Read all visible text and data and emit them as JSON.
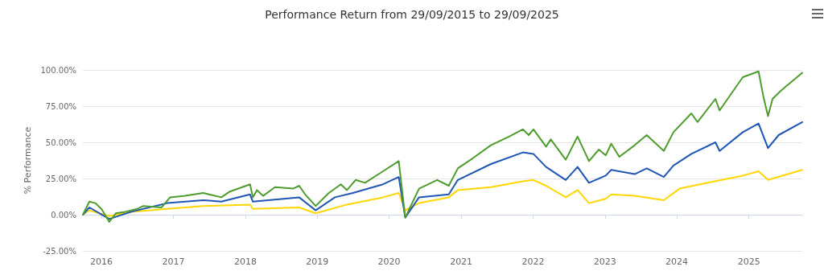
{
  "chart_data": {
    "type": "line",
    "title": "Performance Return from 29/09/2015 to 29/09/2025",
    "ylabel": "% Performance",
    "xlim": [
      "2015-09-29",
      "2025-09-29"
    ],
    "xticks": [
      "2016",
      "2017",
      "2018",
      "2019",
      "2020",
      "2021",
      "2022",
      "2023",
      "2024",
      "2025"
    ],
    "ylim": [
      -25,
      100
    ],
    "yticks": [
      {
        "value": -25,
        "label": "-25.00%"
      },
      {
        "value": 0,
        "label": "0.00%"
      },
      {
        "value": 25,
        "label": "25.00%"
      },
      {
        "value": 50,
        "label": "50.00%"
      },
      {
        "value": 75,
        "label": "75.00%"
      },
      {
        "value": 100,
        "label": "100.00%"
      }
    ],
    "grid": "y",
    "marker": "none",
    "line_style": "solid",
    "series": [
      {
        "color": "#ffd700",
        "x": [
          "2015-09-29",
          "2015-11-01",
          "2016-02-10",
          "2016-06-01",
          "2016-12-01",
          "2017-06-01",
          "2018-01-25",
          "2018-02-08",
          "2018-10-01",
          "2018-12-24",
          "2019-06-01",
          "2019-12-01",
          "2020-02-19",
          "2020-03-23",
          "2020-06-01",
          "2020-10-30",
          "2020-12-15",
          "2021-06-01",
          "2021-11-10",
          "2022-01-03",
          "2022-03-08",
          "2022-06-16",
          "2022-08-15",
          "2022-10-12",
          "2023-01-05",
          "2023-02-02",
          "2023-06-01",
          "2023-10-27",
          "2024-01-15",
          "2024-06-01",
          "2024-12-01",
          "2025-02-19",
          "2025-04-08",
          "2025-09-29"
        ],
        "values": [
          0,
          3,
          -1,
          2,
          4,
          6,
          7,
          4,
          5,
          1,
          7,
          12,
          15,
          3,
          8,
          12,
          17,
          19,
          23,
          24,
          20,
          12,
          17,
          8,
          11,
          14,
          13,
          10,
          18,
          22,
          27,
          30,
          24,
          31
        ]
      },
      {
        "color": "#1f55b5",
        "x": [
          "2015-09-29",
          "2015-11-01",
          "2016-02-10",
          "2016-06-01",
          "2016-12-01",
          "2017-06-01",
          "2017-09-01",
          "2018-01-25",
          "2018-02-08",
          "2018-10-01",
          "2018-12-24",
          "2019-04-01",
          "2019-07-01",
          "2019-12-01",
          "2020-02-19",
          "2020-03-23",
          "2020-06-01",
          "2020-10-30",
          "2020-12-15",
          "2021-06-01",
          "2021-11-10",
          "2022-01-03",
          "2022-03-08",
          "2022-06-16",
          "2022-08-15",
          "2022-10-12",
          "2023-01-05",
          "2023-02-02",
          "2023-06-01",
          "2023-08-01",
          "2023-10-27",
          "2023-12-15",
          "2024-03-15",
          "2024-07-15",
          "2024-08-05",
          "2024-12-01",
          "2025-02-19",
          "2025-04-08",
          "2025-06-01",
          "2025-09-29"
        ],
        "values": [
          0,
          5,
          -3,
          2,
          8,
          10,
          9,
          14,
          9,
          12,
          3,
          12,
          15,
          21,
          26,
          -2,
          12,
          14,
          24,
          35,
          43,
          42,
          33,
          24,
          33,
          22,
          27,
          31,
          28,
          32,
          26,
          34,
          42,
          50,
          44,
          57,
          63,
          46,
          55,
          64
        ]
      },
      {
        "color": "#4f9c2e",
        "x": [
          "2015-09-29",
          "2015-11-01",
          "2015-12-01",
          "2016-01-01",
          "2016-02-10",
          "2016-03-15",
          "2016-05-01",
          "2016-07-01",
          "2016-08-01",
          "2016-11-01",
          "2016-12-15",
          "2017-03-01",
          "2017-06-01",
          "2017-09-01",
          "2017-10-15",
          "2018-01-25",
          "2018-02-08",
          "2018-03-01",
          "2018-04-01",
          "2018-06-01",
          "2018-09-01",
          "2018-10-01",
          "2018-11-01",
          "2018-12-24",
          "2019-03-01",
          "2019-05-01",
          "2019-06-01",
          "2019-07-15",
          "2019-09-01",
          "2019-12-01",
          "2020-02-19",
          "2020-03-23",
          "2020-06-01",
          "2020-09-01",
          "2020-10-30",
          "2020-12-15",
          "2021-03-01",
          "2021-06-01",
          "2021-09-01",
          "2021-11-10",
          "2021-12-10",
          "2022-01-03",
          "2022-03-08",
          "2022-04-01",
          "2022-06-16",
          "2022-08-15",
          "2022-10-12",
          "2022-12-01",
          "2023-01-05",
          "2023-02-02",
          "2023-03-15",
          "2023-06-01",
          "2023-08-01",
          "2023-10-27",
          "2023-12-15",
          "2024-03-15",
          "2024-04-15",
          "2024-07-15",
          "2024-08-05",
          "2024-09-15",
          "2024-12-01",
          "2025-02-19",
          "2025-03-15",
          "2025-04-08",
          "2025-05-01",
          "2025-06-15",
          "2025-09-29"
        ],
        "values": [
          0,
          9,
          8,
          4,
          -5,
          1,
          2,
          4,
          6,
          5,
          12,
          13,
          15,
          12,
          16,
          21,
          12,
          17,
          13,
          19,
          18,
          20,
          14,
          6,
          15,
          21,
          17,
          24,
          22,
          30,
          37,
          -2,
          18,
          24,
          20,
          32,
          39,
          48,
          54,
          59,
          55,
          59,
          47,
          52,
          38,
          54,
          37,
          45,
          41,
          49,
          40,
          48,
          55,
          44,
          57,
          70,
          64,
          80,
          72,
          80,
          95,
          99,
          82,
          68,
          80,
          86,
          98
        ]
      }
    ]
  }
}
